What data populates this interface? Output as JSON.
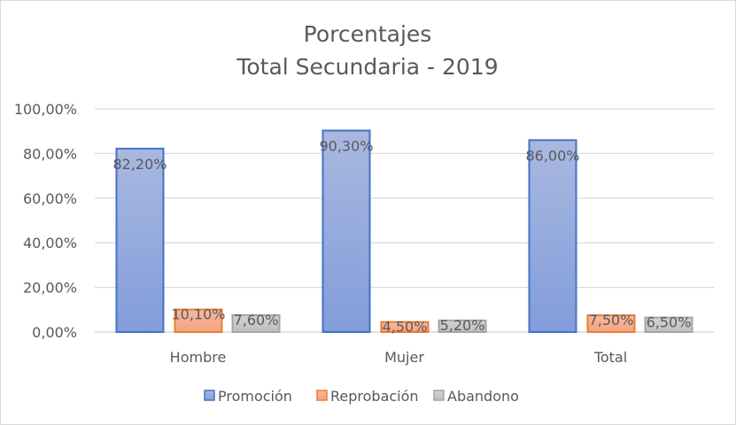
{
  "chart_data": {
    "type": "bar",
    "title": [
      "Porcentajes",
      "Total Secundaria  - 2019"
    ],
    "categories": [
      "Hombre",
      "Mujer",
      "Total"
    ],
    "series": [
      {
        "name": "Promoción",
        "values": [
          82.2,
          90.3,
          86.0
        ],
        "labels": [
          "82,20%",
          "90,30%",
          "86,00%"
        ],
        "color": "#8fa6dc",
        "border": "#4472c4"
      },
      {
        "name": "Reprobación",
        "values": [
          10.1,
          4.5,
          7.5
        ],
        "labels": [
          "10,10%",
          "4,50%",
          "7,50%"
        ],
        "color": "#f6a98a",
        "border": "#ed7d31"
      },
      {
        "name": "Abandono",
        "values": [
          7.6,
          5.2,
          6.5
        ],
        "labels": [
          "7,60%",
          "5,20%",
          "6,50%"
        ],
        "color": "#c8c8c8",
        "border": "#a5a5a5"
      }
    ],
    "yticks": [
      "0,00%",
      "20,00%",
      "40,00%",
      "60,00%",
      "80,00%",
      "100,00%"
    ],
    "ylim": [
      0,
      100
    ],
    "grid": true,
    "legend": "bottom"
  }
}
